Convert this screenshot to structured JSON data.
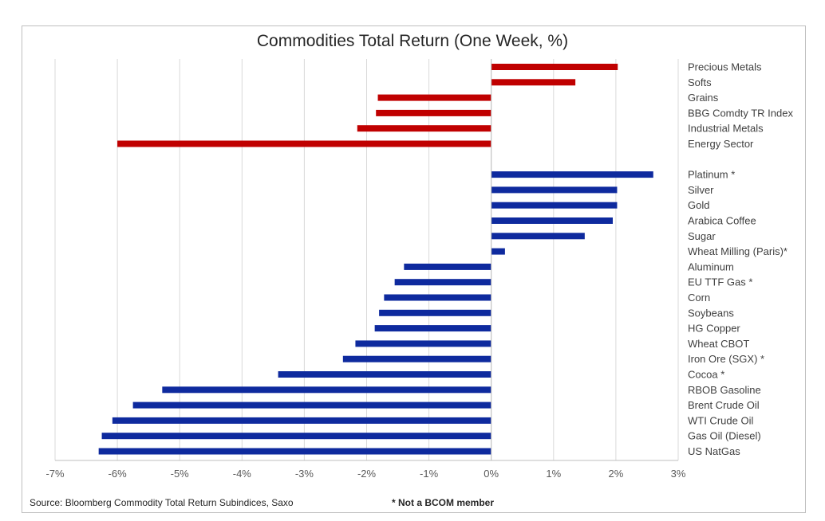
{
  "chart_data": {
    "type": "bar",
    "orientation": "horizontal",
    "title": "Commodities Total Return (One Week, %)",
    "xlim": [
      -7,
      3
    ],
    "x_ticks": [
      "-7%",
      "-6%",
      "-5%",
      "-4%",
      "-3%",
      "-2%",
      "-1%",
      "0%",
      "1%",
      "2%",
      "3%"
    ],
    "grid": true,
    "groups": [
      {
        "color": "#c00000",
        "categories": [
          "Precious Metals",
          "Softs",
          "Grains",
          "BBG Comdty TR Index",
          "Industrial Metals",
          "Energy Sector"
        ],
        "values": [
          2.03,
          1.35,
          -1.82,
          -1.85,
          -2.15,
          -6.0
        ]
      },
      {
        "color": "#0e2a9e",
        "categories": [
          "Platinum *",
          "Silver",
          "Gold",
          "Arabica Coffee",
          "Sugar",
          "Wheat Milling (Paris)*",
          "Aluminum",
          "EU TTF Gas *",
          "Corn",
          "Soybeans",
          "HG Copper",
          "Wheat CBOT",
          "Iron Ore (SGX) *",
          "Cocoa *",
          "RBOB Gasoline",
          "Brent Crude Oil",
          "WTI Crude Oil",
          "Gas Oil (Diesel)",
          "US NatGas"
        ],
        "values": [
          2.6,
          2.02,
          2.02,
          1.95,
          1.5,
          0.22,
          -1.4,
          -1.55,
          -1.72,
          -1.8,
          -1.87,
          -2.18,
          -2.38,
          -3.42,
          -5.28,
          -5.75,
          -6.08,
          -6.25,
          -6.3
        ]
      }
    ]
  },
  "footer": {
    "source": "Source: Bloomberg Commodity Total Return Subindices, Saxo",
    "note": "* Not a BCOM member"
  }
}
